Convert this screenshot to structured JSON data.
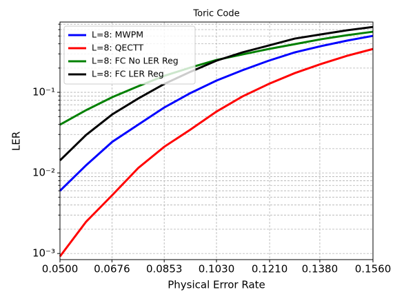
{
  "chart_data": {
    "type": "line",
    "title": "Toric Code",
    "x_label": "Physical Error Rate",
    "y_label": "LER",
    "x": [
      0.05,
      0.0588,
      0.0677,
      0.0765,
      0.0853,
      0.0942,
      0.103,
      0.1118,
      0.1207,
      0.1295,
      0.1383,
      0.1472,
      0.156
    ],
    "series": [
      {
        "name": "L=8: MWPM",
        "color": "#0000ff",
        "values": [
          0.006,
          0.0124,
          0.0243,
          0.0397,
          0.0648,
          0.098,
          0.14,
          0.188,
          0.247,
          0.313,
          0.374,
          0.438,
          0.502
        ]
      },
      {
        "name": "L=8: QECTT",
        "color": "#ff0000",
        "values": [
          0.00092,
          0.00247,
          0.0053,
          0.0115,
          0.0211,
          0.0345,
          0.0577,
          0.0889,
          0.127,
          0.173,
          0.224,
          0.284,
          0.345
        ]
      },
      {
        "name": "L=8: FC No LER Reg",
        "color": "#008000",
        "values": [
          0.0397,
          0.06,
          0.087,
          0.119,
          0.16,
          0.203,
          0.252,
          0.295,
          0.345,
          0.396,
          0.455,
          0.511,
          0.565
        ]
      },
      {
        "name": "L=8: FC LER Reg",
        "color": "#000000",
        "values": [
          0.0143,
          0.0295,
          0.0532,
          0.0838,
          0.127,
          0.18,
          0.247,
          0.313,
          0.381,
          0.464,
          0.523,
          0.588,
          0.648
        ]
      }
    ],
    "xlim": [
      0.05,
      0.156
    ],
    "xticks": [
      {
        "value": 0.05,
        "label": "0.0500"
      },
      {
        "value": 0.0676,
        "label": "0.0676"
      },
      {
        "value": 0.0853,
        "label": "0.0853"
      },
      {
        "value": 0.103,
        "label": "0.1030"
      },
      {
        "value": 0.121,
        "label": "0.1210"
      },
      {
        "value": 0.138,
        "label": "0.1380"
      },
      {
        "value": 0.156,
        "label": "0.1560"
      }
    ],
    "ylim": [
      0.00084,
      0.745
    ],
    "y_log": true,
    "yticks": [
      {
        "value": 0.001,
        "label": "10⁻³"
      },
      {
        "value": 0.01,
        "label": "10⁻²"
      },
      {
        "value": 0.1,
        "label": "10⁻¹"
      }
    ],
    "y_minor_ticks": [
      0.002,
      0.003,
      0.004,
      0.005,
      0.006,
      0.007,
      0.008,
      0.009,
      0.02,
      0.03,
      0.04,
      0.05,
      0.06,
      0.07,
      0.08,
      0.09,
      0.2,
      0.3,
      0.4,
      0.5,
      0.6,
      0.7
    ],
    "grid": true,
    "legend": "upper left"
  }
}
